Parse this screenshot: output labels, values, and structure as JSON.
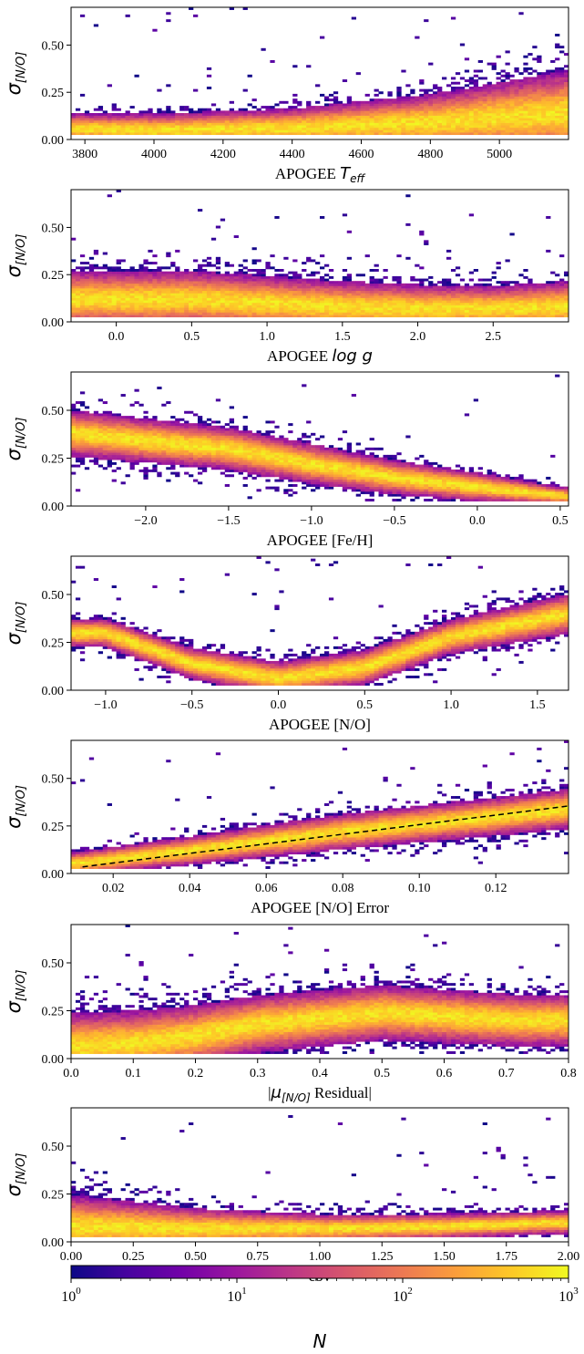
{
  "chart_data": [
    {
      "type": "heatmap",
      "xlabel": "APOGEE ",
      "xlabel_math": "T",
      "xlabel_math_sub": "eff",
      "ylabel": "σ",
      "ylabel_sub": "[N/O]",
      "xlim": [
        3760,
        5200
      ],
      "ylim": [
        0.0,
        0.7
      ],
      "xticks": [
        3800,
        4000,
        4200,
        4400,
        4600,
        4800,
        5000
      ],
      "xtick_labels": [
        "3800",
        "4000",
        "4200",
        "4400",
        "4600",
        "4800",
        "5000"
      ],
      "yticks": [
        0.0,
        0.25,
        0.5
      ],
      "ytick_labels": [
        "0.00",
        "0.25",
        "0.50"
      ],
      "trend": {
        "x": [
          3760,
          4000,
          4400,
          4800,
          5200
        ],
        "y": [
          0.06,
          0.05,
          0.06,
          0.09,
          0.14
        ]
      },
      "spread": {
        "x": [
          3760,
          4400,
          4800,
          5200
        ],
        "y": [
          0.1,
          0.14,
          0.2,
          0.3
        ]
      }
    },
    {
      "type": "heatmap",
      "xlabel": "APOGEE ",
      "xlabel_math": "log g",
      "ylabel": "σ",
      "ylabel_sub": "[N/O]",
      "xlim": [
        -0.3,
        3.0
      ],
      "ylim": [
        0.0,
        0.7
      ],
      "xticks": [
        0.0,
        0.5,
        1.0,
        1.5,
        2.0,
        2.5
      ],
      "xtick_labels": [
        "0.0",
        "0.5",
        "1.0",
        "1.5",
        "2.0",
        "2.5"
      ],
      "yticks": [
        0.0,
        0.25,
        0.5
      ],
      "ytick_labels": [
        "0.00",
        "0.25",
        "0.50"
      ],
      "trend": {
        "x": [
          0.5,
          1.0,
          1.5,
          2.0,
          2.5,
          3.0
        ],
        "y": [
          0.12,
          0.1,
          0.08,
          0.07,
          0.07,
          0.08
        ]
      },
      "spread": {
        "x": [
          0.5,
          1.5,
          2.5,
          3.0
        ],
        "y": [
          0.2,
          0.18,
          0.16,
          0.18
        ]
      }
    },
    {
      "type": "heatmap",
      "xlabel": "APOGEE [Fe/H]",
      "ylabel": "σ",
      "ylabel_sub": "[N/O]",
      "xlim": [
        -2.45,
        0.55
      ],
      "ylim": [
        0.0,
        0.7
      ],
      "xticks": [
        -2.0,
        -1.5,
        -1.0,
        -0.5,
        0.0,
        0.5
      ],
      "xtick_labels": [
        "−2.0",
        "−1.5",
        "−1.0",
        "−0.5",
        "0.0",
        "0.5"
      ],
      "yticks": [
        0.0,
        0.25,
        0.5
      ],
      "ytick_labels": [
        "0.00",
        "0.25",
        "0.50"
      ],
      "trend": {
        "x": [
          -2.45,
          -1.5,
          -1.0,
          -0.5,
          0.0,
          0.55
        ],
        "y": [
          0.38,
          0.3,
          0.22,
          0.15,
          0.1,
          0.05
        ]
      },
      "spread": {
        "x": [
          -2.45,
          -1.0,
          0.0,
          0.55
        ],
        "y": [
          0.16,
          0.14,
          0.1,
          0.06
        ]
      }
    },
    {
      "type": "heatmap",
      "xlabel": "APOGEE [N/O]",
      "ylabel": "σ",
      "ylabel_sub": "[N/O]",
      "xlim": [
        -1.2,
        1.68
      ],
      "ylim": [
        0.0,
        0.7
      ],
      "xticks": [
        -1.0,
        -0.5,
        0.0,
        0.5,
        1.0,
        1.5
      ],
      "xtick_labels": [
        "−1.0",
        "−0.5",
        "0.0",
        "0.5",
        "1.0",
        "1.5"
      ],
      "yticks": [
        0.0,
        0.25,
        0.5
      ],
      "ytick_labels": [
        "0.00",
        "0.25",
        "0.50"
      ],
      "trend": {
        "x": [
          -1.0,
          -0.5,
          0.0,
          0.5,
          1.0,
          1.68
        ],
        "y": [
          0.3,
          0.14,
          0.06,
          0.12,
          0.28,
          0.4
        ]
      },
      "spread": {
        "x": [
          -1.0,
          0.0,
          1.0,
          1.68
        ],
        "y": [
          0.1,
          0.12,
          0.12,
          0.14
        ]
      }
    },
    {
      "type": "heatmap",
      "xlabel": "APOGEE [N/O] Error",
      "ylabel": "σ",
      "ylabel_sub": "[N/O]",
      "xlim": [
        0.009,
        0.139
      ],
      "ylim": [
        0.0,
        0.7
      ],
      "xticks": [
        0.02,
        0.04,
        0.06,
        0.08,
        0.1,
        0.12
      ],
      "xtick_labels": [
        "0.02",
        "0.04",
        "0.06",
        "0.08",
        "0.10",
        "0.12"
      ],
      "yticks": [
        0.0,
        0.25,
        0.5
      ],
      "ytick_labels": [
        "0.00",
        "0.25",
        "0.50"
      ],
      "trend": {
        "x": [
          0.009,
          0.04,
          0.08,
          0.12,
          0.139
        ],
        "y": [
          0.05,
          0.12,
          0.22,
          0.3,
          0.34
        ]
      },
      "spread": {
        "x": [
          0.009,
          0.07,
          0.139
        ],
        "y": [
          0.08,
          0.12,
          0.14
        ]
      },
      "fit_line": {
        "x": [
          0.012,
          0.139
        ],
        "y": [
          0.035,
          0.355
        ]
      }
    },
    {
      "type": "heatmap",
      "xlabel": "|",
      "xlabel_math": "μ",
      "xlabel_math_sub": "[N/O]",
      "xlabel_tail": " Residual|",
      "ylabel": "σ",
      "ylabel_sub": "[N/O]",
      "xlim": [
        0.0,
        0.8
      ],
      "ylim": [
        0.0,
        0.7
      ],
      "xticks": [
        0.0,
        0.1,
        0.2,
        0.3,
        0.4,
        0.5,
        0.6,
        0.7,
        0.8
      ],
      "xtick_labels": [
        "0.0",
        "0.1",
        "0.2",
        "0.3",
        "0.4",
        "0.5",
        "0.6",
        "0.7",
        "0.8"
      ],
      "yticks": [
        0.0,
        0.25,
        0.5
      ],
      "ytick_labels": [
        "0.00",
        "0.25",
        "0.50"
      ],
      "trend": {
        "x": [
          0.0,
          0.1,
          0.2,
          0.3,
          0.5,
          0.72
        ],
        "y": [
          0.06,
          0.08,
          0.12,
          0.18,
          0.24,
          0.2
        ]
      },
      "spread": {
        "x": [
          0.0,
          0.3,
          0.72
        ],
        "y": [
          0.24,
          0.2,
          0.18
        ]
      }
    },
    {
      "type": "heatmap",
      "xlabel": "ebv",
      "ylabel": "σ",
      "ylabel_sub": "[N/O]",
      "xlim": [
        0.0,
        2.0
      ],
      "ylim": [
        0.0,
        0.7
      ],
      "xticks": [
        0.0,
        0.25,
        0.5,
        0.75,
        1.0,
        1.25,
        1.5,
        1.75,
        2.0
      ],
      "xtick_labels": [
        "0.00",
        "0.25",
        "0.50",
        "0.75",
        "1.00",
        "1.25",
        "1.50",
        "1.75",
        "2.00"
      ],
      "yticks": [
        0.0,
        0.25,
        0.5
      ],
      "ytick_labels": [
        "0.00",
        "0.25",
        "0.50"
      ],
      "trend": {
        "x": [
          0.0,
          0.5,
          1.0,
          1.5,
          1.9
        ],
        "y": [
          0.08,
          0.07,
          0.07,
          0.08,
          0.1
        ]
      },
      "spread": {
        "x": [
          0.0,
          0.5,
          1.0,
          1.9
        ],
        "y": [
          0.22,
          0.14,
          0.1,
          0.08
        ]
      }
    }
  ],
  "colorbar": {
    "label": "N",
    "scale": "log",
    "range": [
      1,
      1000
    ],
    "ticks": [
      1,
      10,
      100,
      1000
    ],
    "tick_base": "10",
    "tick_exponents": [
      "0",
      "1",
      "2",
      "3"
    ],
    "colormap": "plasma",
    "colors": [
      "#0d0887",
      "#46039f",
      "#7201a8",
      "#9c179e",
      "#bd3786",
      "#d8576b",
      "#ed7953",
      "#fb9f3a",
      "#fdca26",
      "#f0f921"
    ]
  },
  "colors": {
    "fit_line": "#000000",
    "background": "#ffffff"
  }
}
